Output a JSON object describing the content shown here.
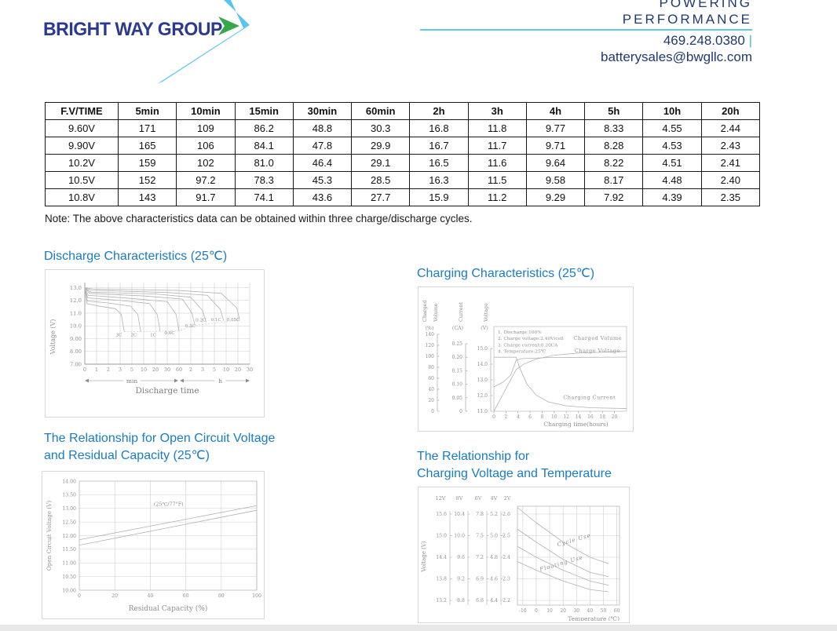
{
  "header": {
    "logo": {
      "text": "BRIGHT WAY GROUP",
      "navy": "#2b3990",
      "light_blue": "#59c6f0",
      "green": "#36a84c"
    },
    "tagline1": "POWERING",
    "tagline2": "PERFORMANCE",
    "phone": "469.248.0380",
    "pipe": "|",
    "email": "batterysales@bwgllc.com",
    "text_color": "#1f3a6e",
    "rule_color": "#63c6ec"
  },
  "table": {
    "headers": [
      "F.V/TIME",
      "5min",
      "10min",
      "15min",
      "30min",
      "60min",
      "2h",
      "3h",
      "4h",
      "5h",
      "10h",
      "20h"
    ],
    "rows": [
      [
        "9.60V",
        "171",
        "109",
        "86.2",
        "48.8",
        "30.3",
        "16.8",
        "11.8",
        "9.77",
        "8.33",
        "4.55",
        "2.44"
      ],
      [
        "9.90V",
        "165",
        "106",
        "84.1",
        "47.8",
        "29.9",
        "16.7",
        "11.7",
        "9.71",
        "8.28",
        "4.53",
        "2.43"
      ],
      [
        "10.2V",
        "159",
        "102",
        "81.0",
        "46.4",
        "29.1",
        "16.5",
        "11.6",
        "9.64",
        "8.22",
        "4.51",
        "2.41"
      ],
      [
        "10.5V",
        "152",
        "97.2",
        "78.3",
        "45.3",
        "28.5",
        "16.3",
        "11.5",
        "9.58",
        "8.17",
        "4.48",
        "2.40"
      ],
      [
        "10.8V",
        "143",
        "91.7",
        "74.1",
        "43.6",
        "27.7",
        "15.9",
        "11.2",
        "9.29",
        "7.92",
        "4.39",
        "2.35"
      ]
    ]
  },
  "note": "Note: The above characteristics data can be obtained within three charge/discharge cycles.",
  "headings": {
    "ocv_lines": [
      "The Relationship for Open Circuit Voltage",
      "and Residual Capacity (25℃)"
    ],
    "temp_lines": [
      "The Relationship for",
      "Charging Voltage and Temperature"
    ],
    "title_color": "#1a7cc2"
  },
  "chart_data": [
    {
      "id": "discharge",
      "type": "line",
      "title": "Discharge Characteristics (25℃)",
      "ylabel": "Voltage (V)",
      "xlabel": "Discharge time",
      "ylim": [
        7.0,
        13.4
      ],
      "y_ticks": [
        {
          "label": "13.0",
          "v": 13
        },
        {
          "label": "12.0",
          "v": 12
        },
        {
          "label": "11.0",
          "v": 11
        },
        {
          "label": "10.0",
          "v": 10
        },
        {
          "label": "9.00",
          "v": 9
        },
        {
          "label": "8.00",
          "v": 8
        },
        {
          "label": "7.00",
          "v": 7
        }
      ],
      "x_groups": [
        {
          "label": "min",
          "ticks": [
            "0",
            "1",
            "2",
            "3",
            "5",
            "10",
            "20",
            "30",
            "60"
          ]
        },
        {
          "label": "h",
          "ticks": [
            "2",
            "3",
            "5",
            "10",
            "20",
            "30"
          ]
        }
      ],
      "series": [
        {
          "name": "3C",
          "points": [
            [
              0,
              13.0
            ],
            [
              0.18,
              11.75
            ],
            [
              1.2,
              11.55
            ],
            [
              2.6,
              11.35
            ],
            [
              3.1,
              10.9
            ],
            [
              3.35,
              9.55
            ]
          ],
          "label_at": [
            2.9,
            9.2
          ]
        },
        {
          "name": "2C",
          "points": [
            [
              0,
              13.0
            ],
            [
              0.22,
              11.95
            ],
            [
              2.0,
              11.8
            ],
            [
              3.9,
              11.55
            ],
            [
              4.5,
              10.9
            ],
            [
              4.75,
              9.55
            ]
          ],
          "label_at": [
            4.15,
            9.2
          ]
        },
        {
          "name": "1C",
          "points": [
            [
              0,
              13.0
            ],
            [
              0.25,
              12.2
            ],
            [
              3.0,
              12.0
            ],
            [
              5.5,
              11.75
            ],
            [
              6.15,
              10.9
            ],
            [
              6.4,
              9.55
            ]
          ],
          "label_at": [
            5.8,
            9.2
          ]
        },
        {
          "name": "0.6C",
          "points": [
            [
              0,
              13.0
            ],
            [
              0.3,
              12.4
            ],
            [
              4.0,
              12.15
            ],
            [
              7.0,
              11.9
            ],
            [
              7.75,
              10.9
            ],
            [
              8.0,
              9.6
            ]
          ],
          "label_at": [
            7.2,
            9.35
          ]
        },
        {
          "name": "0.3C",
          "points": [
            [
              0,
              13.0
            ],
            [
              0.4,
              12.55
            ],
            [
              5.0,
              12.35
            ],
            [
              8.3,
              12.1
            ],
            [
              9.1,
              11.0
            ],
            [
              9.35,
              10.05
            ]
          ],
          "label_at": [
            8.95,
            9.9
          ]
        },
        {
          "name": "0.2C",
          "points": [
            [
              0,
              13.0
            ],
            [
              0.5,
              12.65
            ],
            [
              6.0,
              12.5
            ],
            [
              9.0,
              12.25
            ],
            [
              10.0,
              11.2
            ],
            [
              10.3,
              10.3
            ]
          ],
          "label_at": [
            9.85,
            10.35
          ]
        },
        {
          "name": "0.1C",
          "points": [
            [
              0,
              13.0
            ],
            [
              0.6,
              12.8
            ],
            [
              7.0,
              12.62
            ],
            [
              10.4,
              12.4
            ],
            [
              11.5,
              11.3
            ],
            [
              11.8,
              10.4
            ]
          ],
          "label_at": [
            11.15,
            10.4
          ]
        },
        {
          "name": "0.05C",
          "points": [
            [
              0,
              13.0
            ],
            [
              0.7,
              12.9
            ],
            [
              8.0,
              12.78
            ],
            [
              11.6,
              12.55
            ],
            [
              12.9,
              11.4
            ],
            [
              13.15,
              10.5
            ]
          ],
          "label_at": [
            12.6,
            10.4
          ]
        }
      ],
      "dotted_guide": [
        [
          3.35,
          9.55
        ],
        [
          8.0,
          9.6
        ],
        [
          9.35,
          10.05
        ],
        [
          13.2,
          10.45
        ]
      ]
    },
    {
      "id": "charging",
      "type": "line",
      "title": "Charging Characteristics (25℃)",
      "xlabel": "Charging time(hours)",
      "xlim": [
        0,
        22
      ],
      "x_ticks": [
        0,
        2,
        4,
        6,
        8,
        10,
        12,
        14,
        16,
        18,
        20
      ],
      "axes": [
        {
          "title": "Charged Volume",
          "unit": "(%)",
          "ticks": [
            "140",
            "120",
            "100",
            "80",
            "60",
            "40",
            "20",
            "0"
          ],
          "range": [
            0,
            140
          ]
        },
        {
          "title": "Current",
          "unit": "(CA)",
          "ticks": [
            "0.25",
            "0.20",
            "0.15",
            "0.10",
            "0.05",
            "0"
          ],
          "range": [
            0,
            0.25
          ]
        },
        {
          "title": "Voltage",
          "unit": "(V)",
          "ticks": [
            "15.0",
            "14.0",
            "13.0",
            "12.0",
            "11.0"
          ],
          "range": [
            11,
            15
          ]
        }
      ],
      "notes": [
        "1. Discharge:100%",
        "2. Charge voltage:2.40V/cell",
        "3. Charge current:0.20CA",
        "4. Temperature:25℃"
      ],
      "series": [
        {
          "name": "Charged Volume",
          "axis": "volume",
          "points": [
            [
              0,
              0
            ],
            [
              3.7,
              76
            ],
            [
              5,
              86
            ],
            [
              7,
              95
            ],
            [
              10,
              102
            ],
            [
              14,
              106
            ],
            [
              22,
              109
            ]
          ],
          "label_at": [
            13.2,
            130
          ]
        },
        {
          "name": "Charge Voltage",
          "axis": "voltage",
          "points": [
            [
              0,
              12.55
            ],
            [
              1.5,
              12.85
            ],
            [
              2.8,
              13.3
            ],
            [
              3.7,
              14.25
            ],
            [
              4.5,
              14.35
            ],
            [
              9,
              14.42
            ],
            [
              22,
              14.45
            ]
          ],
          "label_at": [
            13.4,
            14.75
          ]
        },
        {
          "name": "Charging Current",
          "axis": "current",
          "points": [
            [
              0,
              0.2
            ],
            [
              3.7,
              0.2
            ],
            [
              4.3,
              0.16
            ],
            [
              5.5,
              0.1
            ],
            [
              7,
              0.06
            ],
            [
              9,
              0.035
            ],
            [
              12,
              0.02
            ],
            [
              16,
              0.013
            ],
            [
              22,
              0.01
            ]
          ],
          "label_at": [
            11.5,
            0.045
          ]
        }
      ]
    },
    {
      "id": "ocv",
      "type": "line",
      "title": "The Relationship for Open Circuit Voltage and Residual Capacity (25℃)",
      "ylabel": "Open Circuit Voltage (V)",
      "xlabel": "Residual Capacity (%)",
      "ylim": [
        10.0,
        14.0
      ],
      "xlim": [
        0,
        100
      ],
      "y_ticks": [
        {
          "label": "14.00",
          "v": 14
        },
        {
          "label": "13.50",
          "v": 13.5
        },
        {
          "label": "13.00",
          "v": 13
        },
        {
          "label": "12.50",
          "v": 12.5
        },
        {
          "label": "12.00",
          "v": 12
        },
        {
          "label": "11.50",
          "v": 11.5
        },
        {
          "label": "11.00",
          "v": 11
        },
        {
          "label": "10.50",
          "v": 10.5
        },
        {
          "label": "10.00",
          "v": 10
        }
      ],
      "x_ticks": [
        {
          "label": "0",
          "v": 0
        },
        {
          "label": "20",
          "v": 20
        },
        {
          "label": "40",
          "v": 40
        },
        {
          "label": "60",
          "v": 60
        },
        {
          "label": "80",
          "v": 80
        },
        {
          "label": "100",
          "v": 100
        }
      ],
      "annotation": {
        "text": "(25℃/77°F)",
        "at": [
          42,
          13.1
        ]
      },
      "series": [
        {
          "name": "upper",
          "points": [
            [
              0,
              11.85
            ],
            [
              100,
              13.1
            ]
          ]
        },
        {
          "name": "lower",
          "points": [
            [
              0,
              11.65
            ],
            [
              100,
              12.93
            ]
          ]
        }
      ]
    },
    {
      "id": "temp",
      "type": "line",
      "title": "The Relationship for Charging Voltage and Temperature",
      "ylabel": "Voltage (V)",
      "xlabel": "Temperature (℃)",
      "scale_headers": [
        "12V",
        "8V",
        "6V",
        "4V",
        "2V"
      ],
      "scale_rows_v": [
        2.6,
        2.5,
        2.4,
        2.3,
        2.2
      ],
      "scales": [
        [
          "15.6",
          "15.0",
          "14.4",
          "13.8",
          "13.2"
        ],
        [
          "10.4",
          "10.0",
          "9.6",
          "9.2",
          "8.8"
        ],
        [
          "7.8",
          "7.5",
          "7.2",
          "6.9",
          "6.6"
        ],
        [
          "5.2",
          "5.0",
          "4.8",
          "4.6",
          "4.4"
        ],
        [
          "2.6",
          "2.5",
          "2.4",
          "2.3",
          "2.2"
        ]
      ],
      "x_ticks": [
        {
          "label": "-10",
          "v": -10
        },
        {
          "label": "0",
          "v": 0
        },
        {
          "label": "10",
          "v": 10
        },
        {
          "label": "20",
          "v": 20
        },
        {
          "label": "30",
          "v": 30
        },
        {
          "label": "40",
          "v": 40
        },
        {
          "label": "50",
          "v": 50
        },
        {
          "label": "60",
          "v": 60
        }
      ],
      "xlim": [
        -14,
        62
      ],
      "bands": [
        {
          "name": "Cycle Use",
          "label_at": [
            16,
            2.45
          ],
          "upper": [
            [
              -14,
              2.63
            ],
            [
              0,
              2.56
            ],
            [
              20,
              2.47
            ],
            [
              40,
              2.4
            ],
            [
              54,
              2.37
            ]
          ],
          "lower": [
            [
              -14,
              2.53
            ],
            [
              0,
              2.47
            ],
            [
              20,
              2.39
            ],
            [
              40,
              2.33
            ],
            [
              54,
              2.31
            ]
          ]
        },
        {
          "name": "Floating Use",
          "label_at": [
            3,
            2.335
          ],
          "upper": [
            [
              -14,
              2.45
            ],
            [
              0,
              2.4
            ],
            [
              20,
              2.34
            ],
            [
              40,
              2.29
            ],
            [
              54,
              2.27
            ]
          ],
          "lower": [
            [
              -14,
              2.38
            ],
            [
              0,
              2.34
            ],
            [
              20,
              2.29
            ],
            [
              40,
              2.25
            ],
            [
              54,
              2.24
            ]
          ]
        }
      ]
    }
  ]
}
